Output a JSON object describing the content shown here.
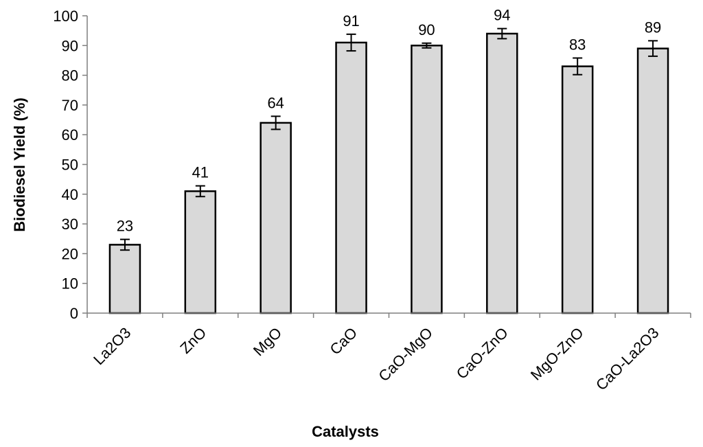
{
  "chart_data": {
    "type": "bar",
    "categories": [
      "La2O3",
      "ZnO",
      "MgO",
      "CaO",
      "CaO-MgO",
      "CaO-ZnO",
      "MgO-ZnO",
      "CaO-La2O3"
    ],
    "values": [
      23,
      41,
      64,
      91,
      90,
      94,
      83,
      89
    ],
    "error": [
      1.8,
      1.8,
      2.2,
      2.8,
      0.8,
      1.7,
      2.8,
      2.6
    ],
    "data_labels": [
      "23",
      "41",
      "64",
      "91",
      "90",
      "94",
      "83",
      "89"
    ],
    "xlabel": "Catalysts",
    "ylabel": "Biodiesel Yield (%)",
    "ylim": [
      0,
      100
    ],
    "yticks": [
      "0",
      "10",
      "20",
      "30",
      "40",
      "50",
      "60",
      "70",
      "80",
      "90",
      "100"
    ],
    "grid": false,
    "legend": "none",
    "colors": {
      "bar_fill": "#d9d9d9",
      "bar_stroke": "#000000",
      "axis": "#7f7f7f"
    }
  }
}
